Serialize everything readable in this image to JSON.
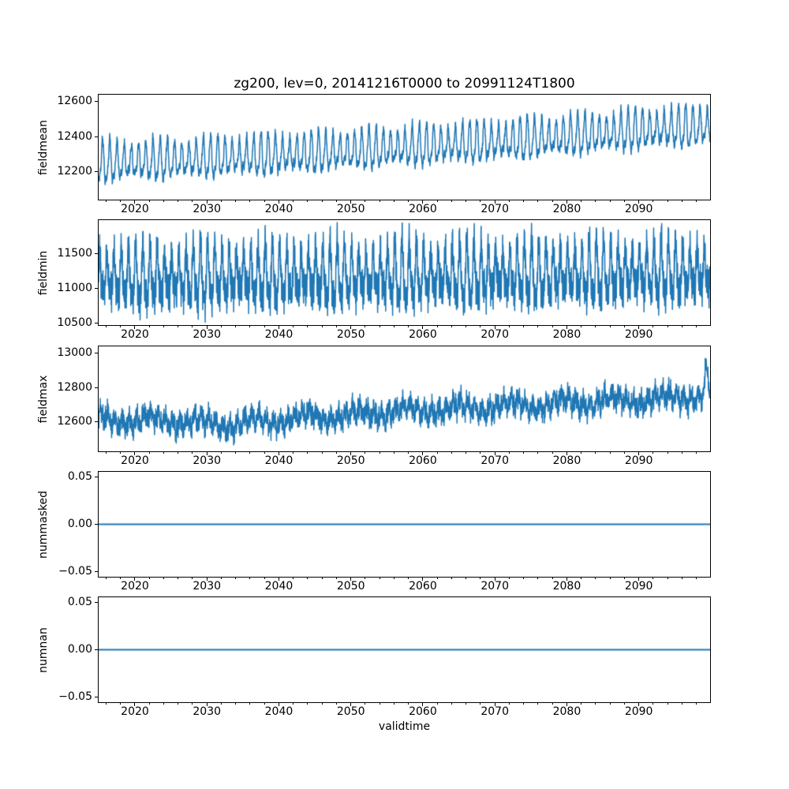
{
  "figure": {
    "title": "zg200, lev=0, 20141216T0000 to 20991124T1800",
    "xlabel": "validtime"
  },
  "colors": {
    "line": "#1f77b4",
    "text": "#000000",
    "spine": "#000000",
    "background": "#ffffff"
  },
  "chart_data": [
    {
      "type": "line",
      "ylabel": "fieldmean",
      "xlim": [
        2014.96,
        2099.9
      ],
      "xticks": [
        2020,
        2030,
        2040,
        2050,
        2060,
        2070,
        2080,
        2090
      ],
      "x_minor_step": 2,
      "ylim": [
        12040,
        12640
      ],
      "yticks": [
        {
          "v": 12200,
          "label": "12200"
        },
        {
          "v": 12400,
          "label": "12400"
        },
        {
          "v": 12600,
          "label": "12600"
        }
      ],
      "observed": {
        "pattern": "annual oscillation, peak-to-trough ~250, rising trend",
        "min": 12080,
        "max": 12610,
        "decade_centers_x": [
          2015,
          2030,
          2045,
          2060,
          2075,
          2090,
          2100
        ],
        "decade_centers_y": [
          12245,
          12270,
          12300,
          12340,
          12380,
          12430,
          12455
        ]
      },
      "waveform": {
        "seed": 11,
        "dt": 0.02,
        "trend_x": [
          2015,
          2030,
          2045,
          2060,
          2075,
          2090,
          2100
        ],
        "trend_y": [
          12245,
          12270,
          12300,
          12340,
          12380,
          12430,
          12455
        ],
        "components": [
          {
            "freq": 1,
            "amp": 95,
            "phase": -1.57,
            "mod": 0.22,
            "mod_period": 7.3,
            "mod_phase": 0.5
          },
          {
            "freq": 2,
            "amp": 30,
            "phase": 1.1
          },
          {
            "freq": 3.83,
            "amp": 14,
            "phase": 0.7
          },
          {
            "freq": 11.7,
            "amp": 9,
            "phase": 2.1
          }
        ],
        "noise": 13
      }
    },
    {
      "type": "line",
      "ylabel": "fieldmin",
      "xlim": [
        2014.96,
        2099.9
      ],
      "xticks": [
        2020,
        2030,
        2040,
        2050,
        2060,
        2070,
        2080,
        2090
      ],
      "x_minor_step": 2,
      "ylim": [
        10470,
        11990
      ],
      "yticks": [
        {
          "v": 11500,
          "label": "11500"
        },
        {
          "v": 11000,
          "label": "11000"
        },
        {
          "v": 10500,
          "label": "10500"
        }
      ],
      "observed": {
        "pattern": "dense high-frequency oscillation filling band 10550-11900, nearly flat trend",
        "min": 10550,
        "max": 11920,
        "decade_centers_x": [
          2015,
          2060,
          2100
        ],
        "decade_centers_y": [
          11150,
          11180,
          11220
        ]
      },
      "waveform": {
        "seed": 23,
        "dt": 0.02,
        "trend_x": [
          2015,
          2060,
          2100
        ],
        "trend_y": [
          11150,
          11180,
          11220
        ],
        "components": [
          {
            "freq": 1,
            "amp": 330,
            "phase": 0.8,
            "mod": 0.25,
            "mod_period": 9.1,
            "mod_phase": 1.2
          },
          {
            "freq": 2,
            "amp": 130,
            "phase": 0.5
          },
          {
            "freq": 6.3,
            "amp": 130,
            "phase": 1.9
          },
          {
            "freq": 17.7,
            "amp": 110,
            "phase": 0.3
          }
        ],
        "noise": 90
      }
    },
    {
      "type": "line",
      "ylabel": "fieldmax",
      "xlim": [
        2014.96,
        2099.9
      ],
      "xticks": [
        2020,
        2030,
        2040,
        2050,
        2060,
        2070,
        2080,
        2090
      ],
      "x_minor_step": 2,
      "ylim": [
        12430,
        13040
      ],
      "yticks": [
        {
          "v": 12600,
          "label": "12600"
        },
        {
          "v": 12800,
          "label": "12800"
        },
        {
          "v": 13000,
          "label": "13000"
        }
      ],
      "observed": {
        "pattern": "noisy band ~200 wide rising from ~12600 to ~12760, spike to ~13010 at end",
        "min": 12460,
        "max": 13010,
        "decade_centers_x": [
          2015,
          2025,
          2033,
          2045,
          2055,
          2070,
          2085,
          2095,
          2100
        ],
        "decade_centers_y": [
          12615,
          12605,
          12585,
          12630,
          12660,
          12690,
          12720,
          12740,
          12770
        ]
      },
      "waveform": {
        "seed": 37,
        "dt": 0.02,
        "trend_x": [
          2015,
          2025,
          2033,
          2045,
          2055,
          2070,
          2085,
          2095,
          2100
        ],
        "trend_y": [
          12615,
          12605,
          12585,
          12630,
          12660,
          12690,
          12720,
          12740,
          12770
        ],
        "components": [
          {
            "freq": 1,
            "amp": 35,
            "phase": 0.0
          },
          {
            "freq": 0.14,
            "amp": 25,
            "phase": 0.9
          },
          {
            "freq": 2.71,
            "amp": 20,
            "phase": 1.4
          },
          {
            "freq": 7.9,
            "amp": 25,
            "phase": 2.2
          },
          {
            "freq": 19.3,
            "amp": 20,
            "phase": 0.6
          }
        ],
        "noise": 30,
        "spikes": [
          {
            "t": 2099.4,
            "amp": 140,
            "w": 0.3
          }
        ]
      }
    },
    {
      "type": "line",
      "ylabel": "nummasked",
      "xlim": [
        2014.96,
        2099.9
      ],
      "xticks": [
        2020,
        2030,
        2040,
        2050,
        2060,
        2070,
        2080,
        2090
      ],
      "x_minor_step": 2,
      "ylim": [
        -0.055,
        0.055
      ],
      "yticks": [
        {
          "v": 0.05,
          "label": "0.05"
        },
        {
          "v": 0,
          "label": "0.00"
        },
        {
          "v": -0.05,
          "label": "−0.05"
        }
      ],
      "observed": {
        "pattern": "constant zero across full time range"
      },
      "constant_value": 0
    },
    {
      "type": "line",
      "ylabel": "numnan",
      "xlim": [
        2014.96,
        2099.9
      ],
      "xticks": [
        2020,
        2030,
        2040,
        2050,
        2060,
        2070,
        2080,
        2090
      ],
      "x_minor_step": 2,
      "ylim": [
        -0.055,
        0.055
      ],
      "yticks": [
        {
          "v": 0.05,
          "label": "0.05"
        },
        {
          "v": 0,
          "label": "0.00"
        },
        {
          "v": -0.05,
          "label": "−0.05"
        }
      ],
      "observed": {
        "pattern": "constant zero across full time range"
      },
      "constant_value": 0
    }
  ]
}
